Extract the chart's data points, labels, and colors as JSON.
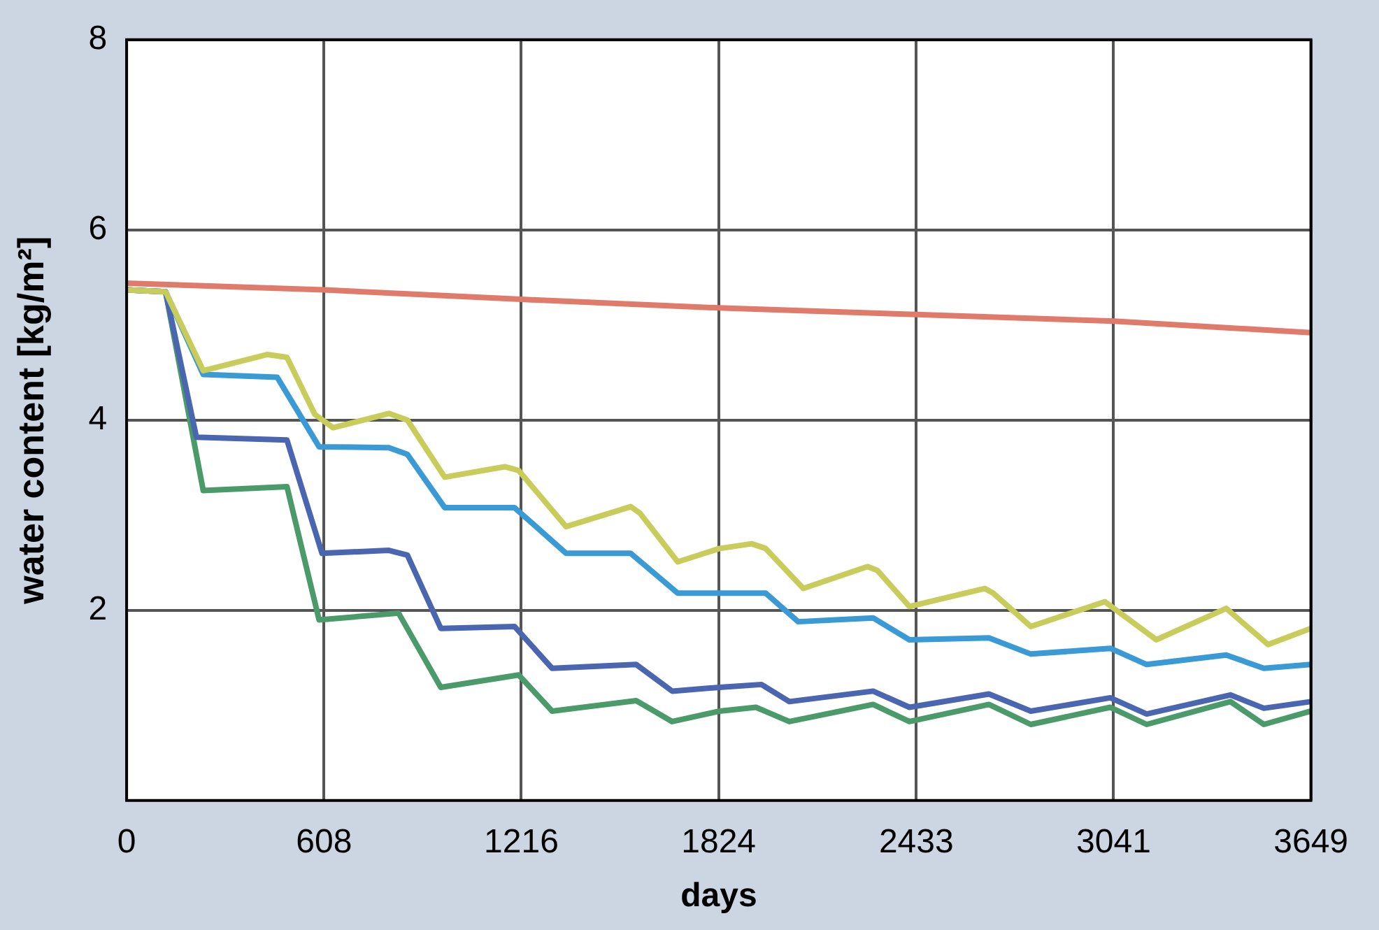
{
  "chart_data": {
    "type": "line",
    "xlabel": "days",
    "ylabel": "water content [kg/m²]",
    "xlim": [
      0,
      3649
    ],
    "xticks": [
      0,
      608,
      1216,
      1824,
      2433,
      3041,
      3649
    ],
    "ylim": [
      0,
      8
    ],
    "yticks": [
      2,
      4,
      6,
      8
    ],
    "grid": true,
    "legend": false,
    "marker": "none",
    "line_style": "solid",
    "series": [
      {
        "color": "#e07a6a",
        "x": [
          0,
          608,
          1216,
          1824,
          2433,
          3041,
          3649
        ],
        "values": [
          5.44,
          5.37,
          5.27,
          5.18,
          5.11,
          5.04,
          4.92
        ]
      },
      {
        "color": "#c8cc5a",
        "x": [
          0,
          120,
          236,
          434,
          494,
          580,
          636,
          808,
          865,
          980,
          1165,
          1208,
          1354,
          1553,
          1582,
          1698,
          1827,
          1926,
          1969,
          2085,
          2283,
          2313,
          2412,
          2644,
          2670,
          2786,
          3014,
          3173,
          3388,
          3517,
          3649
        ],
        "values": [
          5.37,
          5.35,
          4.52,
          4.69,
          4.66,
          4.06,
          3.92,
          4.07,
          4.0,
          3.4,
          3.51,
          3.47,
          2.88,
          3.09,
          3.02,
          2.51,
          2.65,
          2.7,
          2.65,
          2.23,
          2.46,
          2.42,
          2.04,
          2.23,
          2.18,
          1.83,
          2.09,
          1.69,
          2.02,
          1.64,
          1.81
        ]
      },
      {
        "color": "#3a9ad6",
        "x": [
          0,
          120,
          236,
          464,
          593,
          808,
          865,
          980,
          1195,
          1354,
          1553,
          1698,
          1827,
          1969,
          2069,
          2300,
          2412,
          2657,
          2786,
          3031,
          3143,
          3388,
          3504,
          3649
        ],
        "values": [
          5.37,
          5.35,
          4.48,
          4.45,
          3.72,
          3.71,
          3.64,
          3.08,
          3.08,
          2.6,
          2.6,
          2.18,
          2.18,
          2.18,
          1.88,
          1.92,
          1.69,
          1.71,
          1.54,
          1.6,
          1.43,
          1.53,
          1.39,
          1.43
        ]
      },
      {
        "color": "#4a66b0",
        "x": [
          0,
          120,
          215,
          494,
          602,
          808,
          865,
          968,
          1195,
          1311,
          1570,
          1681,
          1827,
          1956,
          2042,
          2300,
          2412,
          2657,
          2786,
          3031,
          3143,
          3401,
          3504,
          3649
        ],
        "values": [
          5.37,
          5.35,
          3.82,
          3.79,
          2.6,
          2.63,
          2.58,
          1.81,
          1.83,
          1.39,
          1.43,
          1.15,
          1.19,
          1.22,
          1.04,
          1.15,
          0.98,
          1.12,
          0.94,
          1.08,
          0.91,
          1.11,
          0.97,
          1.04
        ]
      },
      {
        "color": "#4a9a6a",
        "x": [
          0,
          120,
          236,
          494,
          593,
          838,
          968,
          1208,
          1311,
          1570,
          1681,
          1827,
          1939,
          2042,
          2300,
          2412,
          2657,
          2786,
          3031,
          3143,
          3401,
          3504,
          3649
        ],
        "values": [
          5.37,
          5.35,
          3.26,
          3.3,
          1.9,
          1.97,
          1.19,
          1.32,
          0.94,
          1.05,
          0.83,
          0.94,
          0.98,
          0.83,
          1.01,
          0.83,
          1.01,
          0.8,
          0.98,
          0.8,
          1.04,
          0.8,
          0.94
        ]
      }
    ]
  }
}
